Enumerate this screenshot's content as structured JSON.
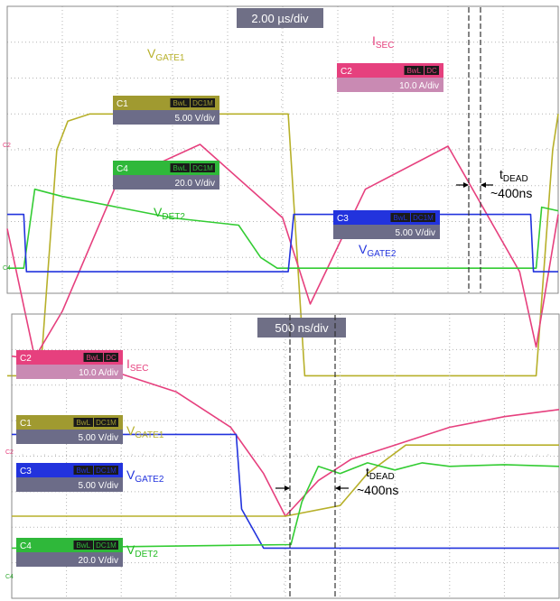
{
  "chart_data": [
    {
      "type": "line",
      "timebase": "2.00 µs/div",
      "colors": {
        "C1": "#b7b02a",
        "C2": "#e6407e",
        "C3": "#2233dd",
        "C4": "#33cc33"
      },
      "channels": [
        {
          "id": "C1",
          "badges": [
            "BwL",
            "DC1M"
          ],
          "scale": "5.00 V/div"
        },
        {
          "id": "C2",
          "badges": [
            "BwL",
            "DC"
          ],
          "scale": "10.0 A/div"
        },
        {
          "id": "C4",
          "badges": [
            "BwL",
            "DC1M"
          ],
          "scale": "20.0 V/div"
        },
        {
          "id": "C3",
          "badges": [
            "BwL",
            "DC1M"
          ],
          "scale": "5.00 V/div"
        }
      ],
      "labels": {
        "vgate1": {
          "main": "V",
          "sub": "GATE1"
        },
        "isec": {
          "main": "I",
          "sub": "SEC"
        },
        "vdet2": {
          "main": "V",
          "sub": "DET2"
        },
        "vgate2": {
          "main": "V",
          "sub": "GATE2"
        },
        "tdead": {
          "main": "t",
          "sub": "DEAD",
          "value": "~400ns"
        }
      },
      "series": [
        {
          "name": "V GATE1",
          "x": [
            0,
            0.6,
            0.9,
            1.1,
            1.5,
            3.5,
            5.1,
            5.4,
            5.6,
            7.0,
            9.6,
            9.9,
            10.0
          ],
          "y": [
            -6.3,
            -6.3,
            0,
            0.8,
            1.0,
            1.0,
            1.0,
            -6.3,
            -6.3,
            -6.3,
            -6.3,
            0,
            1.0
          ]
        },
        {
          "name": "I SEC",
          "x": [
            0,
            0.5,
            1.0,
            2.0,
            3.5,
            5.0,
            5.5,
            6.5,
            8.0,
            9.3,
            9.6,
            10.0
          ],
          "y": [
            -2.2,
            -5.8,
            -4.5,
            -0.9,
            0.15,
            -1.9,
            -4.3,
            -1.1,
            0.1,
            -3.4,
            -5.5,
            -1.8
          ]
        },
        {
          "name": "V DET2",
          "x": [
            0,
            0.3,
            0.5,
            1.0,
            2.0,
            3.0,
            4.2,
            4.6,
            4.9,
            5.1,
            9.6,
            9.7,
            10.0
          ],
          "y": [
            -3.3,
            -3.3,
            -1.1,
            -1.3,
            -1.6,
            -1.9,
            -2.1,
            -3.0,
            -3.3,
            -3.3,
            -3.3,
            -1.6,
            -1.7
          ]
        },
        {
          "name": "V GATE2",
          "x": [
            0,
            0.3,
            0.35,
            5.1,
            5.2,
            9.5,
            9.55,
            10.0
          ],
          "y": [
            -1.8,
            -1.8,
            -3.4,
            -3.4,
            -1.8,
            -1.8,
            -3.4,
            -3.4
          ]
        }
      ]
    },
    {
      "type": "line",
      "timebase": "500 ns/div",
      "colors": {
        "C1": "#b7b02a",
        "C2": "#e6407e",
        "C3": "#2233dd",
        "C4": "#33cc33"
      },
      "channels": [
        {
          "id": "C2",
          "badges": [
            "BwL",
            "DC"
          ],
          "scale": "10.0 A/div"
        },
        {
          "id": "C1",
          "badges": [
            "BwL",
            "DC1M"
          ],
          "scale": "5.00 V/div"
        },
        {
          "id": "C3",
          "badges": [
            "BwL",
            "DC1M"
          ],
          "scale": "5.00 V/div"
        },
        {
          "id": "C4",
          "badges": [
            "BwL",
            "DC1M"
          ],
          "scale": "20.0 V/div"
        }
      ],
      "labels": {
        "isec": {
          "main": "I",
          "sub": "SEC"
        },
        "vgate1": {
          "main": "V",
          "sub": "GATE1"
        },
        "vgate2": {
          "main": "V",
          "sub": "GATE2"
        },
        "vdet2": {
          "main": "V",
          "sub": "DET2"
        },
        "tdead": {
          "main": "t",
          "sub": "DEAD",
          "value": "~400ns"
        }
      },
      "series": [
        {
          "name": "I SEC",
          "x": [
            0,
            1,
            2,
            3,
            4.0,
            4.6,
            5.0,
            5.6,
            6.2,
            7.0,
            8.0,
            9.0,
            10.0
          ],
          "y": [
            2.8,
            2.6,
            2.3,
            1.8,
            0.8,
            -0.5,
            -1.7,
            -0.7,
            -0.1,
            0.3,
            0.8,
            1.1,
            1.3
          ]
        },
        {
          "name": "V GATE1",
          "x": [
            0,
            4.0,
            5.0,
            6.0,
            6.5,
            7.2,
            7.6,
            8.0,
            10.0
          ],
          "y": [
            -1.7,
            -1.7,
            -1.7,
            -1.4,
            -0.5,
            0.3,
            0.3,
            0.3,
            0.3
          ]
        },
        {
          "name": "V GATE2",
          "x": [
            0,
            4.1,
            4.2,
            4.6,
            5.0,
            10.0
          ],
          "y": [
            0.6,
            0.6,
            -1.5,
            -2.6,
            -2.6,
            -2.6
          ]
        },
        {
          "name": "V DET2",
          "x": [
            0,
            5.1,
            5.3,
            5.6,
            6.0,
            6.5,
            7.0,
            7.5,
            8.0,
            9.0,
            10.0
          ],
          "y": [
            -2.6,
            -2.5,
            -1.3,
            -0.3,
            -0.5,
            -0.2,
            -0.4,
            -0.2,
            -0.3,
            -0.25,
            -0.3
          ]
        }
      ]
    }
  ]
}
